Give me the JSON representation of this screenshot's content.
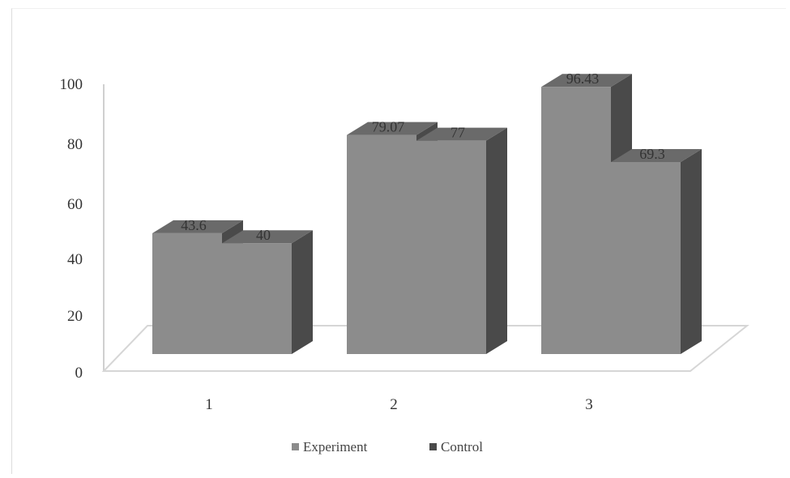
{
  "chart_data": {
    "type": "bar",
    "style": "3d-clustered-column",
    "categories": [
      "1",
      "2",
      "3"
    ],
    "series": [
      {
        "name": "Experiment",
        "values": [
          43.6,
          79.07,
          96.43
        ],
        "labels": [
          "43.6",
          "79.07",
          "96.43"
        ]
      },
      {
        "name": "Control",
        "values": [
          40,
          77,
          69.3
        ],
        "labels": [
          "40",
          "77",
          "69.3"
        ]
      }
    ],
    "y_ticks": [
      "0",
      "20",
      "40",
      "60",
      "80",
      "100"
    ],
    "ylim": [
      0,
      100
    ],
    "grid": false,
    "legend_position": "bottom-center",
    "colors": {
      "bar_front": "#8c8c8c",
      "bar_side": "#4a4a4a",
      "bar_top": "#6a6a6a",
      "floor_line": "#d6d6d6",
      "axis_line": "#d0d0d0"
    }
  }
}
